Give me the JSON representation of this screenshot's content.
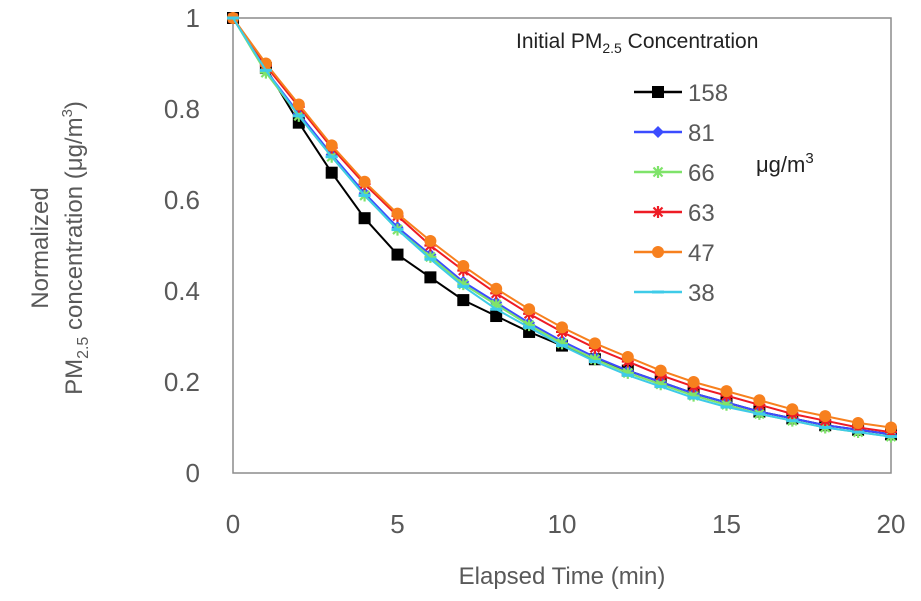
{
  "chart_data": {
    "type": "line",
    "xlabel": "Elapsed Time (min)",
    "ylabel": {
      "line1": "Normalized",
      "line2_pre": "PM",
      "line2_sub": "2.5",
      "line2_post": " concentration (μg/m",
      "line2_sup": "3",
      "line2_end": ")"
    },
    "xlim": [
      0,
      20
    ],
    "ylim": [
      0,
      1
    ],
    "x_ticks": [
      "0",
      "5",
      "10",
      "15",
      "20"
    ],
    "y_ticks": [
      "0",
      "0.2",
      "0.4",
      "0.6",
      "0.8",
      "1"
    ],
    "legend": {
      "title_pre": "Initial PM",
      "title_sub": "2.5",
      "title_post": " Concentration",
      "position": "top-right"
    },
    "unit_note": {
      "base": "μg/m",
      "sup": "3"
    },
    "grid": false,
    "x": [
      0,
      1,
      2,
      3,
      4,
      5,
      6,
      7,
      8,
      9,
      10,
      11,
      12,
      13,
      14,
      15,
      16,
      17,
      18,
      19,
      20
    ],
    "series": [
      {
        "name": "158",
        "color": "#000000",
        "marker": "square",
        "values": [
          1.0,
          0.89,
          0.77,
          0.66,
          0.56,
          0.48,
          0.43,
          0.38,
          0.345,
          0.31,
          0.28,
          0.25,
          0.225,
          0.2,
          0.175,
          0.155,
          0.135,
          0.12,
          0.105,
          0.095,
          0.085
        ]
      },
      {
        "name": "81",
        "color": "#3b4cff",
        "marker": "diamond",
        "values": [
          1.0,
          0.885,
          0.79,
          0.7,
          0.615,
          0.54,
          0.48,
          0.42,
          0.375,
          0.33,
          0.29,
          0.255,
          0.225,
          0.2,
          0.175,
          0.155,
          0.135,
          0.12,
          0.105,
          0.095,
          0.085
        ]
      },
      {
        "name": "66",
        "color": "#7fe36a",
        "marker": "star",
        "values": [
          1.0,
          0.88,
          0.785,
          0.695,
          0.61,
          0.535,
          0.475,
          0.415,
          0.37,
          0.325,
          0.285,
          0.25,
          0.22,
          0.195,
          0.17,
          0.15,
          0.13,
          0.115,
          0.1,
          0.09,
          0.08
        ]
      },
      {
        "name": "63",
        "color": "#ee1c25",
        "marker": "star",
        "values": [
          1.0,
          0.895,
          0.805,
          0.715,
          0.635,
          0.565,
          0.5,
          0.445,
          0.395,
          0.35,
          0.31,
          0.275,
          0.245,
          0.215,
          0.19,
          0.17,
          0.15,
          0.13,
          0.115,
          0.1,
          0.09
        ]
      },
      {
        "name": "47",
        "color": "#f7801e",
        "marker": "circle",
        "values": [
          1.0,
          0.9,
          0.81,
          0.72,
          0.64,
          0.57,
          0.51,
          0.455,
          0.405,
          0.36,
          0.32,
          0.285,
          0.255,
          0.225,
          0.2,
          0.18,
          0.16,
          0.14,
          0.125,
          0.11,
          0.1
        ]
      },
      {
        "name": "38",
        "color": "#3ecbe8",
        "marker": "dash",
        "values": [
          1.0,
          0.885,
          0.785,
          0.695,
          0.61,
          0.535,
          0.47,
          0.41,
          0.36,
          0.32,
          0.28,
          0.245,
          0.215,
          0.19,
          0.165,
          0.145,
          0.13,
          0.115,
          0.1,
          0.09,
          0.08
        ]
      }
    ]
  }
}
